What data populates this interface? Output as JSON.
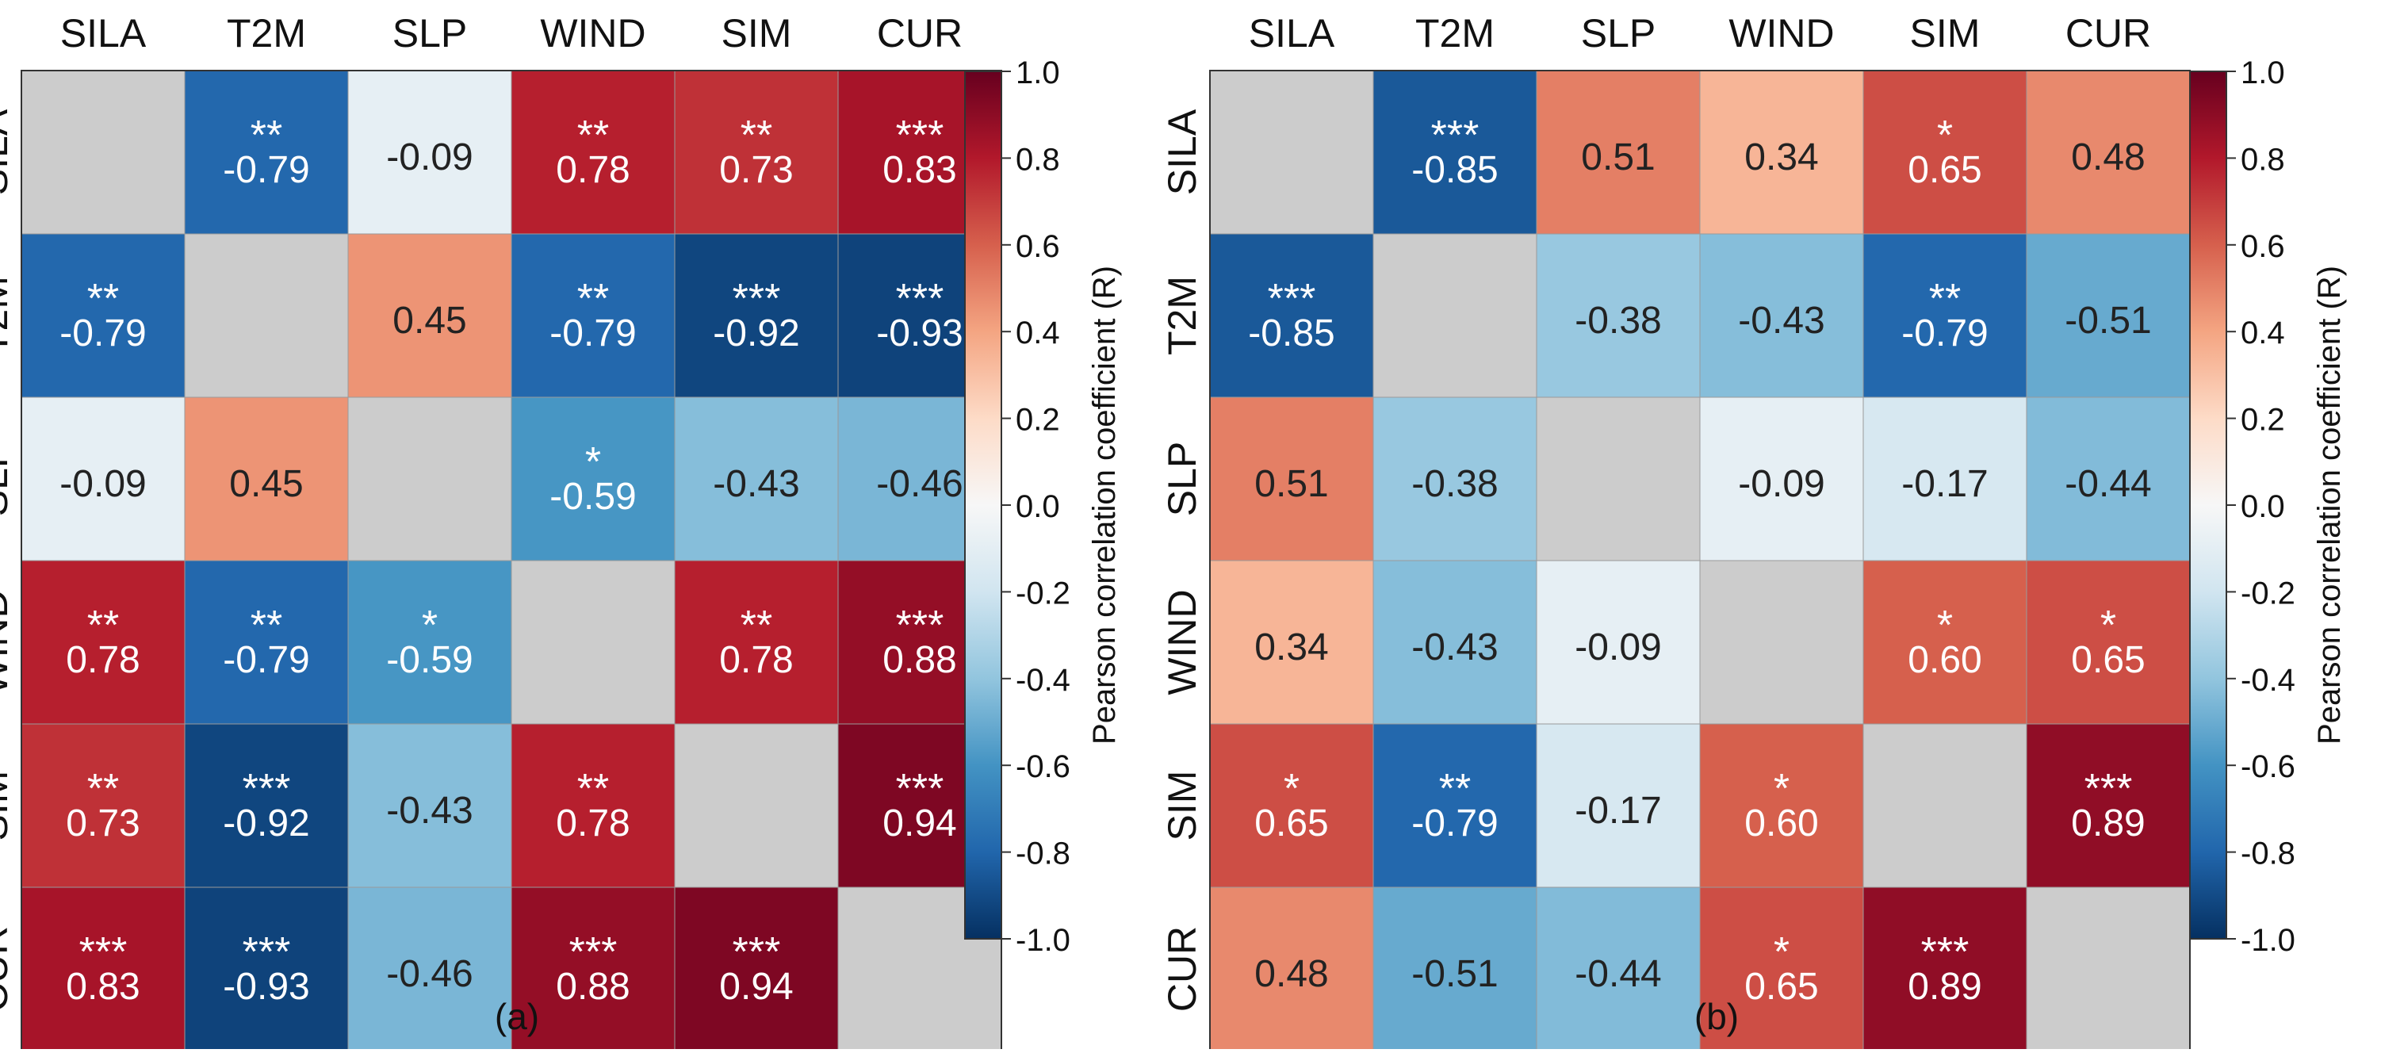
{
  "chart_data": [
    {
      "type": "heatmap",
      "panel_label": "(a)",
      "variables": [
        "SILA",
        "T2M",
        "SLP",
        "WIND",
        "SIM",
        "CUR"
      ],
      "matrix": [
        [
          null,
          -0.79,
          -0.09,
          0.78,
          0.73,
          0.83
        ],
        [
          -0.79,
          null,
          0.45,
          -0.79,
          -0.92,
          -0.93
        ],
        [
          -0.09,
          0.45,
          null,
          -0.59,
          -0.43,
          -0.46
        ],
        [
          0.78,
          -0.79,
          -0.59,
          null,
          0.78,
          0.88
        ],
        [
          0.73,
          -0.92,
          -0.43,
          0.78,
          null,
          0.94
        ],
        [
          0.83,
          -0.93,
          -0.46,
          0.88,
          0.94,
          null
        ]
      ],
      "labels": [
        [
          "",
          "-0.79",
          "-0.09",
          "0.78",
          "0.73",
          "0.83"
        ],
        [
          "-0.79",
          "",
          "0.45",
          "-0.79",
          "-0.92",
          "-0.93"
        ],
        [
          "-0.09",
          "0.45",
          "",
          "-0.59",
          "-0.43",
          "-0.46"
        ],
        [
          "0.78",
          "-0.79",
          "-0.59",
          "",
          "0.78",
          "0.88"
        ],
        [
          "0.73",
          "-0.92",
          "-0.43",
          "0.78",
          "",
          "0.94"
        ],
        [
          "0.83",
          "-0.93",
          "-0.46",
          "0.88",
          "0.94",
          ""
        ]
      ],
      "significance": [
        [
          "",
          "**",
          "",
          "**",
          "**",
          "***"
        ],
        [
          "**",
          "",
          "",
          "**",
          "***",
          "***"
        ],
        [
          "",
          "",
          "",
          "*",
          "",
          ""
        ],
        [
          "**",
          "**",
          "*",
          "",
          "**",
          "***"
        ],
        [
          "**",
          "***",
          "",
          "**",
          "",
          "***"
        ],
        [
          "***",
          "***",
          "",
          "***",
          "***",
          ""
        ]
      ],
      "colorbar": {
        "label": "Pearson correlation coefficient (R)",
        "range": [
          -1.0,
          1.0
        ],
        "ticks": [
          "1.0",
          "0.8",
          "0.6",
          "0.4",
          "0.2",
          "0.0",
          "-0.2",
          "-0.4",
          "-0.6",
          "-0.8",
          "-1.0"
        ]
      }
    },
    {
      "type": "heatmap",
      "panel_label": "(b)",
      "variables": [
        "SILA",
        "T2M",
        "SLP",
        "WIND",
        "SIM",
        "CUR"
      ],
      "matrix": [
        [
          null,
          -0.85,
          0.51,
          0.34,
          0.65,
          0.48
        ],
        [
          -0.85,
          null,
          -0.38,
          -0.43,
          -0.79,
          -0.51
        ],
        [
          0.51,
          -0.38,
          null,
          -0.09,
          -0.17,
          -0.44
        ],
        [
          0.34,
          -0.43,
          -0.09,
          null,
          0.6,
          0.65
        ],
        [
          0.65,
          -0.79,
          -0.17,
          0.6,
          null,
          0.89
        ],
        [
          0.48,
          -0.51,
          -0.44,
          0.65,
          0.89,
          null
        ]
      ],
      "labels": [
        [
          "",
          "-0.85",
          "0.51",
          "0.34",
          "0.65",
          "0.48"
        ],
        [
          "-0.85",
          "",
          "-0.38",
          "-0.43",
          "-0.79",
          "-0.51"
        ],
        [
          "0.51",
          "-0.38",
          "",
          "-0.09",
          "-0.17",
          "-0.44"
        ],
        [
          "0.34",
          "-0.43",
          "-0.09",
          "",
          "0.60",
          "0.65"
        ],
        [
          "0.65",
          "-0.79",
          "-0.17",
          "0.60",
          "",
          "0.89"
        ],
        [
          "0.48",
          "-0.51",
          "-0.44",
          "0.65",
          "0.89",
          ""
        ]
      ],
      "significance": [
        [
          "",
          "***",
          "",
          "",
          "*",
          ""
        ],
        [
          "***",
          "",
          "",
          "",
          "**",
          ""
        ],
        [
          "",
          "",
          "",
          "",
          "",
          ""
        ],
        [
          "",
          "",
          "",
          "",
          "*",
          "*"
        ],
        [
          "*",
          "**",
          "",
          "*",
          "",
          "***"
        ],
        [
          "",
          "",
          "",
          "*",
          "***",
          ""
        ]
      ],
      "colorbar": {
        "label": "Pearson correlation coefficient (R)",
        "range": [
          -1.0,
          1.0
        ],
        "ticks": [
          "1.0",
          "0.8",
          "0.6",
          "0.4",
          "0.2",
          "0.0",
          "-0.2",
          "-0.4",
          "-0.6",
          "-0.8",
          "-1.0"
        ]
      }
    }
  ],
  "colors": {
    "diagonal": "#cccccc",
    "grid_line": "#9a9a9a",
    "text_dark": "#222222",
    "text_light": "#ffffff",
    "colormap_RdBu_r": [
      "#053061",
      "#2166ac",
      "#4393c3",
      "#92c5de",
      "#d1e5f0",
      "#f7f7f7",
      "#fddbc7",
      "#f4a582",
      "#d6604d",
      "#b2182b",
      "#67001f"
    ]
  }
}
